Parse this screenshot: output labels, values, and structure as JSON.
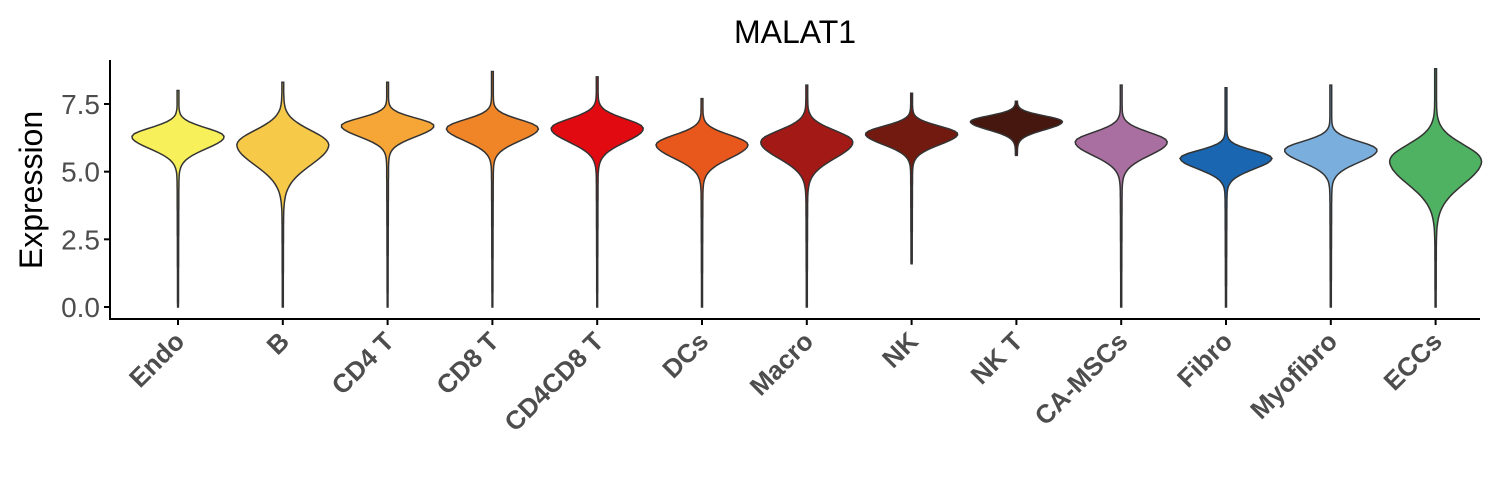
{
  "chart_data": {
    "type": "violin",
    "title": "MALAT1",
    "xlabel": "",
    "ylabel": "Expression",
    "ylim": [
      -0.3,
      9.2
    ],
    "yticks": [
      "0.0",
      "2.5",
      "5.0",
      "7.5"
    ],
    "ytick_values": [
      0,
      2.5,
      5.0,
      7.5
    ],
    "grid": false,
    "legend": "none",
    "categories": [
      "Endo",
      "B",
      "CD4 T",
      "CD8 T",
      "CD4CD8 T",
      "DCs",
      "Macro",
      "NK",
      "NK T",
      "CA-MSCs",
      "Fibro",
      "Myofibro",
      "ECCs"
    ],
    "series": [
      {
        "category": "Endo",
        "color": "#F7F05A",
        "min": 0.0,
        "max": 8.0,
        "mode": 6.3,
        "spread": 0.45,
        "width": 1.0
      },
      {
        "category": "B",
        "color": "#F7C948",
        "min": 0.0,
        "max": 8.3,
        "mode": 6.0,
        "spread": 0.75,
        "width": 1.0
      },
      {
        "category": "CD4 T",
        "color": "#F5A636",
        "min": 0.0,
        "max": 8.3,
        "mode": 6.7,
        "spread": 0.4,
        "width": 1.0
      },
      {
        "category": "CD8 T",
        "color": "#F08528",
        "min": 0.0,
        "max": 8.7,
        "mode": 6.6,
        "spread": 0.45,
        "width": 1.0
      },
      {
        "category": "CD4CD8 T",
        "color": "#E00A10",
        "min": 0.0,
        "max": 8.5,
        "mode": 6.6,
        "spread": 0.5,
        "width": 1.0
      },
      {
        "category": "DCs",
        "color": "#E8571B",
        "min": 0.0,
        "max": 7.7,
        "mode": 6.0,
        "spread": 0.5,
        "width": 1.0
      },
      {
        "category": "Macro",
        "color": "#A31915",
        "min": 0.0,
        "max": 8.2,
        "mode": 6.1,
        "spread": 0.6,
        "width": 1.0
      },
      {
        "category": "NK",
        "color": "#731A10",
        "min": 1.6,
        "max": 7.9,
        "mode": 6.4,
        "spread": 0.4,
        "width": 1.0
      },
      {
        "category": "NK T",
        "color": "#45170E",
        "min": 5.6,
        "max": 7.6,
        "mode": 6.85,
        "spread": 0.3,
        "width": 1.0
      },
      {
        "category": "CA-MSCs",
        "color": "#A86FA0",
        "min": 0.0,
        "max": 8.2,
        "mode": 6.1,
        "spread": 0.5,
        "width": 1.0
      },
      {
        "category": "Fibro",
        "color": "#1A66B0",
        "min": 0.0,
        "max": 8.1,
        "mode": 5.5,
        "spread": 0.4,
        "width": 1.0
      },
      {
        "category": "Myofibro",
        "color": "#7AAEDC",
        "min": 0.0,
        "max": 8.2,
        "mode": 5.8,
        "spread": 0.45,
        "width": 1.0
      },
      {
        "category": "ECCs",
        "color": "#4FB262",
        "min": 0.0,
        "max": 8.8,
        "mode": 5.4,
        "spread": 0.85,
        "width": 1.0
      }
    ]
  }
}
